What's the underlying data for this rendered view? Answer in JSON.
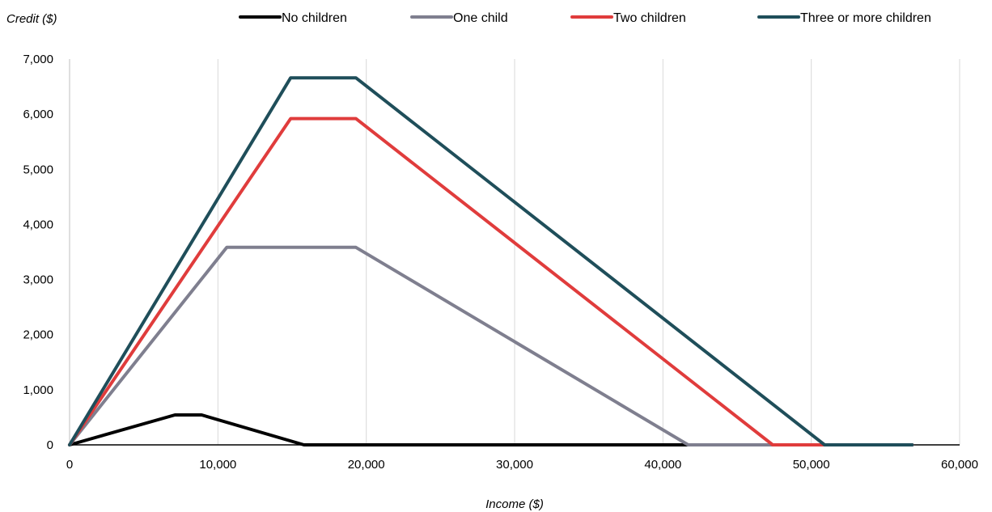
{
  "chart_data": {
    "type": "line",
    "title": "",
    "xlabel": "Income ($)",
    "ylabel": "Credit ($)",
    "xlim": [
      0,
      60000
    ],
    "ylim": [
      0,
      7000
    ],
    "x_ticks": [
      0,
      10000,
      20000,
      30000,
      40000,
      50000,
      60000
    ],
    "x_tick_labels": [
      "0",
      "10,000",
      "20,000",
      "30,000",
      "40,000",
      "50,000",
      "60,000"
    ],
    "y_ticks": [
      0,
      1000,
      2000,
      3000,
      4000,
      5000,
      6000,
      7000
    ],
    "y_tick_labels": [
      "0",
      "1,000",
      "2,000",
      "3,000",
      "4,000",
      "5,000",
      "6,000",
      "7,000"
    ],
    "grid": "vertical",
    "legend_position": "top",
    "series": [
      {
        "name": "No children",
        "color": "#000000",
        "points": [
          [
            0,
            0
          ],
          [
            7100,
            543
          ],
          [
            8900,
            543
          ],
          [
            15800,
            0
          ],
          [
            56800,
            0
          ]
        ]
      },
      {
        "name": "One child",
        "color": "#7f7f8f",
        "points": [
          [
            0,
            0
          ],
          [
            10600,
            3584
          ],
          [
            19300,
            3584
          ],
          [
            41700,
            0
          ],
          [
            56800,
            0
          ]
        ]
      },
      {
        "name": "Two children",
        "color": "#e03c3c",
        "points": [
          [
            0,
            0
          ],
          [
            14900,
            5920
          ],
          [
            19300,
            5920
          ],
          [
            47400,
            0
          ],
          [
            56800,
            0
          ]
        ]
      },
      {
        "name": "Three or more children",
        "color": "#1f4e5a",
        "points": [
          [
            0,
            0
          ],
          [
            14900,
            6660
          ],
          [
            19300,
            6660
          ],
          [
            50900,
            0
          ],
          [
            56800,
            0
          ]
        ]
      }
    ]
  }
}
